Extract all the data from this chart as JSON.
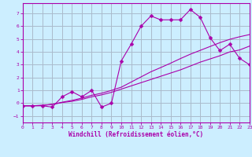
{
  "background_color": "#cceeff",
  "grid_color": "#aabbcc",
  "line_color": "#aa00aa",
  "xlabel": "Windchill (Refroidissement éolien,°C)",
  "xlim": [
    0,
    23
  ],
  "ylim": [
    -1.5,
    7.8
  ],
  "yticks": [
    -1,
    0,
    1,
    2,
    3,
    4,
    5,
    6,
    7
  ],
  "xticks": [
    0,
    1,
    2,
    3,
    4,
    5,
    6,
    7,
    8,
    9,
    10,
    11,
    12,
    13,
    14,
    15,
    16,
    17,
    18,
    19,
    20,
    21,
    22,
    23
  ],
  "line1_x": [
    0,
    1,
    2,
    3,
    4,
    5,
    6,
    7,
    8,
    9,
    10,
    11,
    12,
    13,
    14,
    15,
    16,
    17,
    18,
    19,
    20,
    21,
    22,
    23
  ],
  "line1_y": [
    -0.2,
    -0.2,
    -0.2,
    -0.3,
    0.5,
    0.9,
    0.5,
    1.0,
    -0.3,
    0.0,
    3.3,
    4.6,
    6.0,
    6.8,
    6.5,
    6.5,
    6.5,
    7.3,
    6.7,
    5.1,
    4.1,
    4.6,
    3.5,
    3.0
  ],
  "line2_x": [
    0,
    1,
    2,
    3,
    4,
    5,
    6,
    7,
    8,
    9,
    10,
    11,
    12,
    13,
    14,
    15,
    16,
    17,
    18,
    19,
    20,
    21,
    22,
    23
  ],
  "line2_y": [
    -0.2,
    -0.2,
    -0.15,
    -0.1,
    0.05,
    0.15,
    0.3,
    0.5,
    0.65,
    0.85,
    1.1,
    1.35,
    1.6,
    1.85,
    2.1,
    2.35,
    2.6,
    2.9,
    3.2,
    3.45,
    3.7,
    4.0,
    4.15,
    4.45
  ],
  "line3_x": [
    0,
    1,
    2,
    3,
    4,
    5,
    6,
    7,
    8,
    9,
    10,
    11,
    12,
    13,
    14,
    15,
    16,
    17,
    18,
    19,
    20,
    21,
    22,
    23
  ],
  "line3_y": [
    -0.2,
    -0.2,
    -0.18,
    -0.08,
    0.08,
    0.22,
    0.4,
    0.62,
    0.78,
    1.0,
    1.25,
    1.65,
    2.05,
    2.45,
    2.78,
    3.12,
    3.48,
    3.82,
    4.12,
    4.42,
    4.72,
    4.98,
    5.18,
    5.35
  ],
  "marker": "D",
  "marker_size": 2.5
}
